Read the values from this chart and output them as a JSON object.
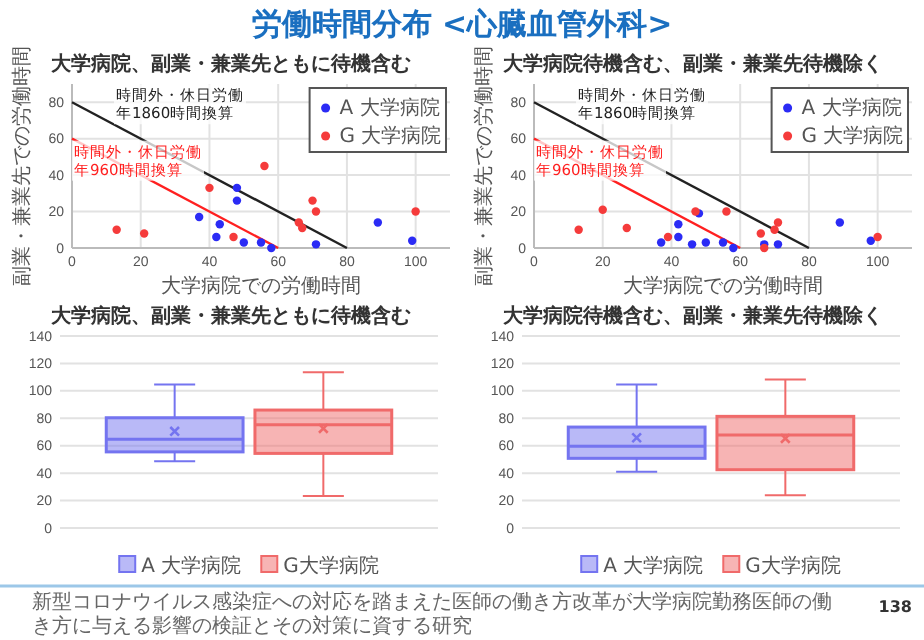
{
  "chart_data": [
    {
      "type": "scatter",
      "title": "大学病院、副業・兼業先ともに待機含む",
      "xlabel": "大学病院での労働時間",
      "ylabel": "副業・兼業先での労働時間",
      "xlim": [
        0,
        110
      ],
      "ylim": [
        0,
        90
      ],
      "xticks": [
        0,
        20,
        40,
        60,
        80,
        100
      ],
      "yticks": [
        0,
        20,
        40,
        60,
        80
      ],
      "grid": true,
      "legend": "top right",
      "annotations": [
        "労働時間分布 <心臓血管外科>"
      ],
      "series": [
        {
          "type": "line",
          "name": "時間外・休日労働年1860時間換算",
          "color": "#222222",
          "x": [
            0,
            80
          ],
          "values": [
            80,
            0
          ]
        },
        {
          "type": "line",
          "name": "時間外・休日労働年960時間換算",
          "color": "#ff2020",
          "x": [
            0,
            60
          ],
          "values": [
            60,
            0
          ]
        },
        {
          "name": "A 大学病院",
          "color": "#2b2bf5",
          "marker": "circle",
          "x": [
            37,
            43,
            42,
            48,
            48,
            50,
            55,
            58,
            71,
            89,
            99
          ],
          "values": [
            17,
            13,
            6,
            26,
            33,
            3,
            3,
            0,
            2,
            14,
            4
          ]
        },
        {
          "name": "G 大学病院",
          "color": "#f53b3b",
          "marker": "circle",
          "x": [
            13,
            21,
            40,
            47,
            56,
            70,
            71,
            66,
            67,
            100
          ],
          "values": [
            10,
            8,
            33,
            6,
            45,
            26,
            20,
            14,
            11,
            20
          ]
        }
      ]
    },
    {
      "type": "scatter",
      "title": "大学病院待機含む、副業・兼業先待機除く",
      "xlabel": "大学病院での労働時間",
      "ylabel": "副業・兼業先での労働時間",
      "xlim": [
        0,
        110
      ],
      "ylim": [
        0,
        90
      ],
      "xticks": [
        0,
        20,
        40,
        60,
        80,
        100
      ],
      "yticks": [
        0,
        20,
        40,
        60,
        80
      ],
      "grid": true,
      "legend": "top right",
      "series": [
        {
          "type": "line",
          "name": "時間外・休日労働年1860時間換算",
          "color": "#222222",
          "x": [
            0,
            80
          ],
          "values": [
            80,
            0
          ]
        },
        {
          "type": "line",
          "name": "時間外・休日労働年960時間換算",
          "color": "#ff2020",
          "x": [
            0,
            60
          ],
          "values": [
            60,
            0
          ]
        },
        {
          "name": "A 大学病院",
          "color": "#2b2bf5",
          "marker": "circle",
          "x": [
            37,
            42,
            42,
            46,
            48,
            50,
            55,
            58,
            67,
            71,
            89,
            98
          ],
          "values": [
            3,
            6,
            13,
            2,
            19,
            3,
            3,
            0,
            2,
            2,
            14,
            4
          ]
        },
        {
          "name": "G 大学病院",
          "color": "#f53b3b",
          "marker": "circle",
          "x": [
            13,
            20,
            27,
            39,
            47,
            56,
            66,
            67,
            70,
            71,
            100
          ],
          "values": [
            10,
            21,
            11,
            6,
            20,
            20,
            8,
            0,
            10,
            14,
            6
          ]
        }
      ]
    },
    {
      "type": "box",
      "title": "大学病院、副業・兼業先ともに待機含む",
      "categories": [
        null
      ],
      "ylim": [
        0,
        140
      ],
      "yticks": [
        0,
        20,
        40,
        60,
        80,
        100,
        120,
        140
      ],
      "grid": "y",
      "legend": "bottom",
      "series": [
        {
          "name": "A 大学病院",
          "color": "#7474f0",
          "boxes": [
            {
              "low": 48.7,
              "q1": 55.5,
              "median": 64.8,
              "q3": 80.4,
              "high": 104.7,
              "mean": 70.5
            }
          ]
        },
        {
          "name": "G大学病院",
          "color": "#f06a6a",
          "boxes": [
            {
              "low": 23.3,
              "q1": 54.4,
              "median": 75.2,
              "q3": 86,
              "high": 113.5,
              "mean": 72.6
            }
          ]
        }
      ]
    },
    {
      "type": "box",
      "title": "大学病院待機含む、副業・兼業先待機除く",
      "categories": [
        null
      ],
      "ylim": [
        0,
        140
      ],
      "yticks": [
        0,
        20,
        40,
        60,
        80,
        100,
        120,
        140
      ],
      "grid": "y",
      "legend": "bottom",
      "annotations": [
        "新型コロナウイルス感染症への対応を踏まえた医師の働き方改革が大学病院勤務医師の働き方に与える影響の検証とその対策に資する研究",
        "138"
      ],
      "series": [
        {
          "name": "A 大学病院",
          "color": "#7474f0",
          "boxes": [
            {
              "low": 41,
              "q1": 50.8,
              "median": 59.6,
              "q3": 73.6,
              "high": 104.7,
              "mean": 65.8
            }
          ]
        },
        {
          "name": "G大学病院",
          "color": "#f06a6a",
          "boxes": [
            {
              "low": 23.8,
              "q1": 42.5,
              "median": 67.9,
              "q3": 81.4,
              "high": 108.3,
              "mean": 65.3
            }
          ]
        }
      ]
    }
  ]
}
